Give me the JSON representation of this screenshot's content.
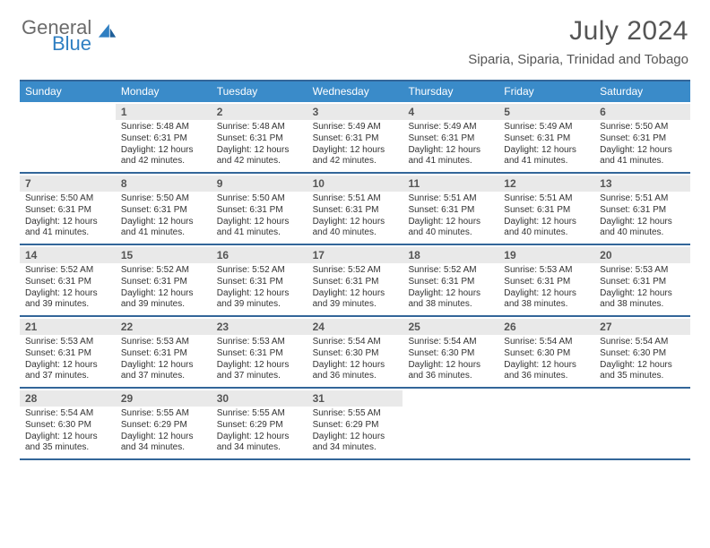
{
  "logo": {
    "word1": "General",
    "word2": "Blue"
  },
  "title": "July 2024",
  "location": "Siparia, Siparia, Trinidad and Tobago",
  "colors": {
    "header_bg": "#3a8bc9",
    "border": "#336699",
    "daynum_bg": "#e9e9e9",
    "logo_gray": "#6b6b6b",
    "logo_blue": "#2f7fc2"
  },
  "dayHeaders": [
    "Sunday",
    "Monday",
    "Tuesday",
    "Wednesday",
    "Thursday",
    "Friday",
    "Saturday"
  ],
  "weeks": [
    [
      {
        "n": "",
        "sr": "",
        "ss": "",
        "dl": ""
      },
      {
        "n": "1",
        "sr": "5:48 AM",
        "ss": "6:31 PM",
        "dl": "12 hours and 42 minutes."
      },
      {
        "n": "2",
        "sr": "5:48 AM",
        "ss": "6:31 PM",
        "dl": "12 hours and 42 minutes."
      },
      {
        "n": "3",
        "sr": "5:49 AM",
        "ss": "6:31 PM",
        "dl": "12 hours and 42 minutes."
      },
      {
        "n": "4",
        "sr": "5:49 AM",
        "ss": "6:31 PM",
        "dl": "12 hours and 41 minutes."
      },
      {
        "n": "5",
        "sr": "5:49 AM",
        "ss": "6:31 PM",
        "dl": "12 hours and 41 minutes."
      },
      {
        "n": "6",
        "sr": "5:50 AM",
        "ss": "6:31 PM",
        "dl": "12 hours and 41 minutes."
      }
    ],
    [
      {
        "n": "7",
        "sr": "5:50 AM",
        "ss": "6:31 PM",
        "dl": "12 hours and 41 minutes."
      },
      {
        "n": "8",
        "sr": "5:50 AM",
        "ss": "6:31 PM",
        "dl": "12 hours and 41 minutes."
      },
      {
        "n": "9",
        "sr": "5:50 AM",
        "ss": "6:31 PM",
        "dl": "12 hours and 41 minutes."
      },
      {
        "n": "10",
        "sr": "5:51 AM",
        "ss": "6:31 PM",
        "dl": "12 hours and 40 minutes."
      },
      {
        "n": "11",
        "sr": "5:51 AM",
        "ss": "6:31 PM",
        "dl": "12 hours and 40 minutes."
      },
      {
        "n": "12",
        "sr": "5:51 AM",
        "ss": "6:31 PM",
        "dl": "12 hours and 40 minutes."
      },
      {
        "n": "13",
        "sr": "5:51 AM",
        "ss": "6:31 PM",
        "dl": "12 hours and 40 minutes."
      }
    ],
    [
      {
        "n": "14",
        "sr": "5:52 AM",
        "ss": "6:31 PM",
        "dl": "12 hours and 39 minutes."
      },
      {
        "n": "15",
        "sr": "5:52 AM",
        "ss": "6:31 PM",
        "dl": "12 hours and 39 minutes."
      },
      {
        "n": "16",
        "sr": "5:52 AM",
        "ss": "6:31 PM",
        "dl": "12 hours and 39 minutes."
      },
      {
        "n": "17",
        "sr": "5:52 AM",
        "ss": "6:31 PM",
        "dl": "12 hours and 39 minutes."
      },
      {
        "n": "18",
        "sr": "5:52 AM",
        "ss": "6:31 PM",
        "dl": "12 hours and 38 minutes."
      },
      {
        "n": "19",
        "sr": "5:53 AM",
        "ss": "6:31 PM",
        "dl": "12 hours and 38 minutes."
      },
      {
        "n": "20",
        "sr": "5:53 AM",
        "ss": "6:31 PM",
        "dl": "12 hours and 38 minutes."
      }
    ],
    [
      {
        "n": "21",
        "sr": "5:53 AM",
        "ss": "6:31 PM",
        "dl": "12 hours and 37 minutes."
      },
      {
        "n": "22",
        "sr": "5:53 AM",
        "ss": "6:31 PM",
        "dl": "12 hours and 37 minutes."
      },
      {
        "n": "23",
        "sr": "5:53 AM",
        "ss": "6:31 PM",
        "dl": "12 hours and 37 minutes."
      },
      {
        "n": "24",
        "sr": "5:54 AM",
        "ss": "6:30 PM",
        "dl": "12 hours and 36 minutes."
      },
      {
        "n": "25",
        "sr": "5:54 AM",
        "ss": "6:30 PM",
        "dl": "12 hours and 36 minutes."
      },
      {
        "n": "26",
        "sr": "5:54 AM",
        "ss": "6:30 PM",
        "dl": "12 hours and 36 minutes."
      },
      {
        "n": "27",
        "sr": "5:54 AM",
        "ss": "6:30 PM",
        "dl": "12 hours and 35 minutes."
      }
    ],
    [
      {
        "n": "28",
        "sr": "5:54 AM",
        "ss": "6:30 PM",
        "dl": "12 hours and 35 minutes."
      },
      {
        "n": "29",
        "sr": "5:55 AM",
        "ss": "6:29 PM",
        "dl": "12 hours and 34 minutes."
      },
      {
        "n": "30",
        "sr": "5:55 AM",
        "ss": "6:29 PM",
        "dl": "12 hours and 34 minutes."
      },
      {
        "n": "31",
        "sr": "5:55 AM",
        "ss": "6:29 PM",
        "dl": "12 hours and 34 minutes."
      },
      {
        "n": "",
        "sr": "",
        "ss": "",
        "dl": ""
      },
      {
        "n": "",
        "sr": "",
        "ss": "",
        "dl": ""
      },
      {
        "n": "",
        "sr": "",
        "ss": "",
        "dl": ""
      }
    ]
  ],
  "labels": {
    "sunrise": "Sunrise:",
    "sunset": "Sunset:",
    "daylight": "Daylight:"
  }
}
